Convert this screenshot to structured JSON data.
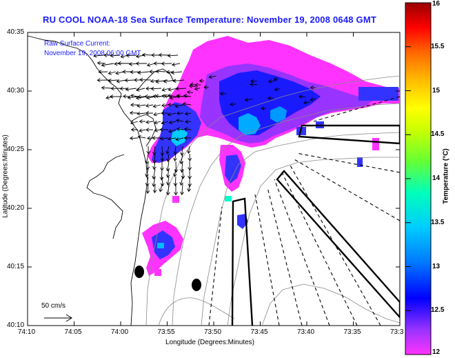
{
  "title": "RU COOL  NOAA-18  Sea Surface Temperature:  November 19, 2008 0648 GMT",
  "annotation": {
    "line1": "Raw Surface Current:",
    "line2": "November 19, 2008 06:00 GMT"
  },
  "scale_label": "50 cm/s",
  "axes": {
    "xlabel": "Longitude (Degrees:Minutes)",
    "ylabel": "Latitude (Degrees:Minutes)",
    "x_ticks": [
      "74:10",
      "74:05",
      "74:00",
      "73:55",
      "73:50",
      "73:45",
      "73:40",
      "73:35",
      "73:3"
    ],
    "y_ticks": [
      "40:35",
      "40:30",
      "40:25",
      "40:20",
      "40:15",
      "40:10"
    ]
  },
  "colorbar": {
    "label": "Temperature (°C)",
    "ticks": [
      "16",
      "15.5",
      "15",
      "14.5",
      "14",
      "13.5",
      "13",
      "12.5",
      "12"
    ],
    "min": 12,
    "max": 16
  }
}
